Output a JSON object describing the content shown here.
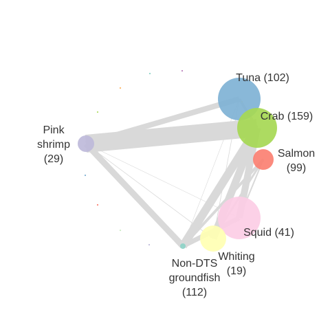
{
  "nodes": [
    {
      "id": "tuna",
      "label_lines": [
        "Tuna (102)"
      ],
      "color": "#7fb2d5"
    },
    {
      "id": "crab",
      "label_lines": [
        "Crab (159)"
      ],
      "color": "#a6d854"
    },
    {
      "id": "salmon",
      "label_lines": [
        "Salmon",
        "(99)"
      ],
      "color": "#fb8072"
    },
    {
      "id": "pink-shrimp",
      "label_lines": [
        "Pink",
        "shrimp",
        "(29)"
      ],
      "color": "#bebada"
    },
    {
      "id": "squid",
      "label_lines": [
        "Squid (41)"
      ],
      "color": "#fccde5"
    },
    {
      "id": "whiting",
      "label_lines": [
        "Whiting",
        "(19)"
      ],
      "color": "#ffffb3"
    },
    {
      "id": "non-dts-groundfish",
      "label_lines": [
        "Non-DTS",
        "groundfish",
        "(112)"
      ],
      "color": "#8dd3c7"
    }
  ],
  "edge_color": "#d9d9d9",
  "minor_node_colors": [
    "#8dd3c7",
    "#bc80bd",
    "#fdb462",
    "#b3de69",
    "#80b1d3",
    "#fb8072",
    "#ccebc5",
    "#bebada",
    "#ffed6f"
  ]
}
